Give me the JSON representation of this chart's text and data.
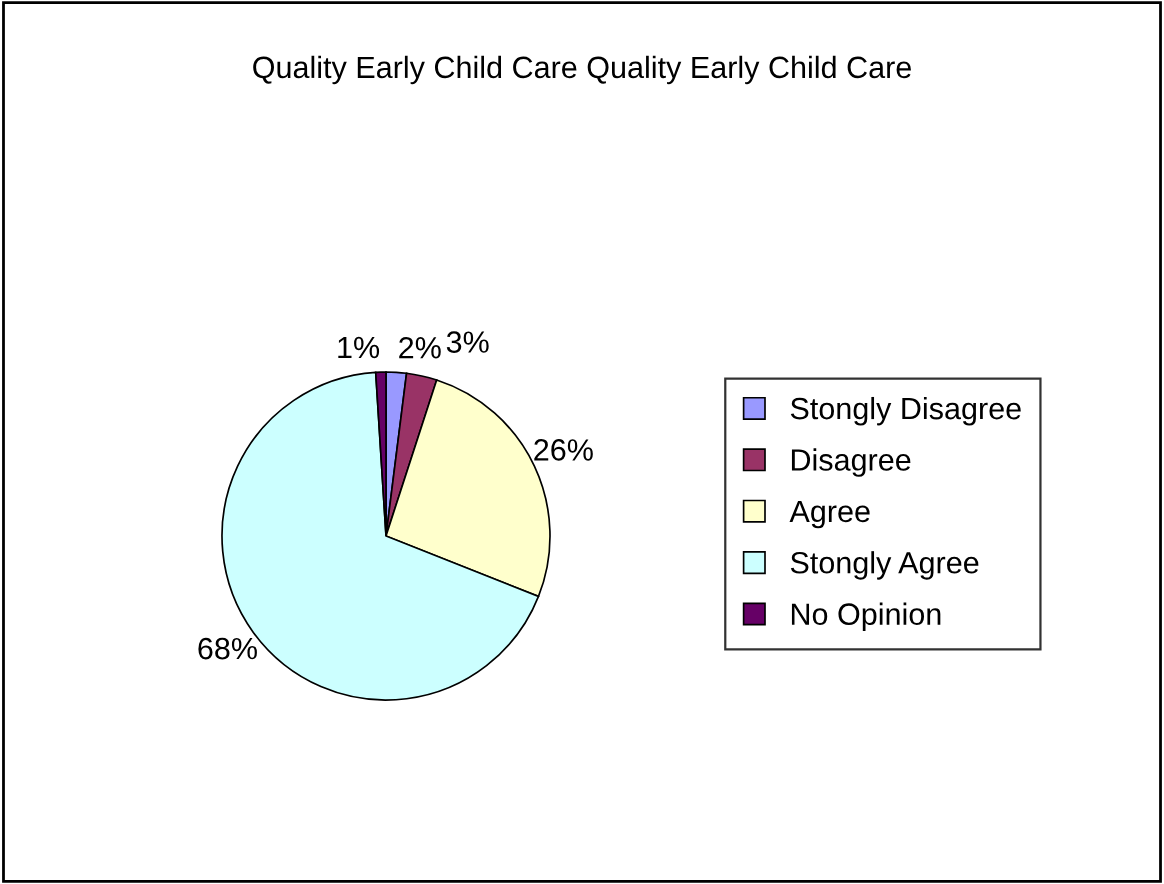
{
  "chart_data": {
    "type": "pie",
    "title": "Quality Early Child Care Quality Early Child Care",
    "categories": [
      "Stongly Disagree",
      "Disagree",
      "Agree",
      "Stongly Agree",
      "No Opinion"
    ],
    "values": [
      2,
      3,
      26,
      68,
      1
    ],
    "colors": [
      "#9999ff",
      "#993366",
      "#ffffcc",
      "#ccffff",
      "#660066"
    ],
    "value_labels": [
      "2%",
      "3%",
      "26%",
      "68%",
      "1%"
    ],
    "legend": "right"
  }
}
